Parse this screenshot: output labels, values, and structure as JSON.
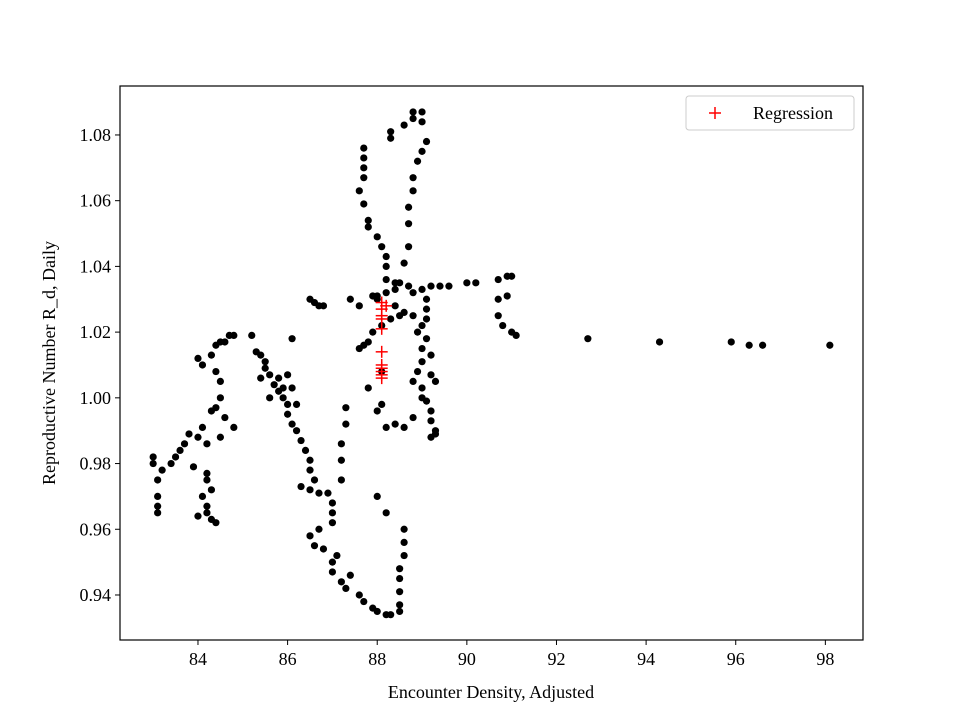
{
  "chart_data": {
    "type": "scatter",
    "x_label": "Encounter Density, Adjusted",
    "y_label": "Reproductive Number R_d, Daily",
    "xlim": [
      82.26,
      98.84
    ],
    "ylim": [
      0.9263,
      1.0949
    ],
    "xticks": [
      84,
      86,
      88,
      90,
      92,
      94,
      96,
      98
    ],
    "yticks": [
      0.94,
      0.96,
      0.98,
      {
        "value": 1,
        "label": "1.00"
      },
      1.02,
      1.04,
      1.06,
      1.08
    ],
    "legend": "upper right",
    "series": [
      {
        "color": "#000000",
        "marker": "dot",
        "x": [
          83.0,
          83.0,
          83.1,
          83.1,
          83.1,
          83.1,
          83.2,
          83.4,
          83.5,
          83.6,
          83.7,
          83.8,
          84.0,
          84.1,
          84.0,
          84.1,
          84.3,
          84.4,
          84.5,
          84.6,
          84.7,
          84.8,
          85.2,
          84.4,
          84.5,
          84.5,
          84.4,
          84.6,
          84.8,
          84.5,
          84.3,
          84.2,
          83.9,
          84.2,
          84.2,
          84.3,
          84.1,
          84.2,
          84.0,
          84.3,
          84.4,
          84.2,
          85.3,
          85.4,
          85.5,
          85.5,
          85.4,
          85.6,
          85.7,
          85.8,
          85.6,
          85.9,
          86.0,
          86.0,
          85.9,
          85.8,
          86.0,
          86.1,
          86.2,
          86.1,
          86.2,
          86.3,
          86.1,
          86.4,
          86.5,
          86.5,
          86.6,
          86.5,
          86.3,
          86.7,
          86.9,
          87.0,
          87.0,
          87.0,
          87.2,
          87.2,
          87.2,
          87.3,
          87.3,
          86.7,
          86.5,
          86.6,
          86.8,
          87.0,
          87.1,
          87.0,
          87.2,
          87.3,
          87.4,
          87.6,
          87.7,
          87.9,
          88.0,
          88.2,
          88.3,
          88.5,
          88.5,
          88.5,
          88.5,
          88.5,
          88.6,
          88.6,
          88.6,
          88.2,
          88.0,
          86.5,
          86.6,
          86.7,
          86.8,
          87.4,
          87.6,
          87.9,
          88.0,
          88.2,
          88.4,
          88.5,
          88.7,
          88.8,
          89.0,
          89.2,
          89.4,
          89.6,
          90.0,
          90.2,
          90.7,
          90.9,
          91.0,
          90.7,
          90.8,
          91.0,
          91.1,
          90.9,
          90.7,
          88.0,
          88.2,
          88.2,
          88.2,
          88.1,
          88.0,
          87.8,
          87.8,
          87.7,
          87.6,
          87.7,
          87.7,
          87.7,
          87.7,
          88.3,
          88.3,
          88.6,
          88.8,
          88.8,
          89.0,
          89.0,
          89.1,
          89.0,
          88.9,
          88.8,
          88.8,
          88.7,
          88.7,
          88.7,
          88.6,
          88.4,
          88.4,
          88.6,
          88.8,
          89.0,
          89.1,
          89.0,
          89.0,
          88.9,
          88.8,
          89.0,
          89.1,
          89.2,
          89.2,
          89.3,
          89.2,
          89.3,
          88.8,
          88.6,
          88.4,
          88.1,
          88.0,
          87.8,
          87.6,
          87.7,
          87.8,
          87.9,
          88.1,
          88.3,
          88.5,
          88.1,
          89.1,
          89.1,
          89.1,
          88.9,
          89.2,
          89.2,
          89.3,
          89.0,
          88.2,
          92.7,
          94.3,
          95.9,
          96.3,
          96.6,
          98.1
        ],
        "values": [
          0.982,
          0.98,
          0.975,
          0.97,
          0.967,
          0.965,
          0.978,
          0.98,
          0.982,
          0.984,
          0.986,
          0.989,
          0.988,
          0.991,
          1.012,
          1.01,
          1.013,
          1.016,
          1.017,
          1.017,
          1.019,
          1.019,
          1.019,
          1.008,
          1.005,
          1.0,
          0.997,
          0.994,
          0.991,
          0.988,
          0.996,
          0.986,
          0.979,
          0.977,
          0.975,
          0.972,
          0.97,
          0.967,
          0.964,
          0.963,
          0.962,
          0.965,
          1.014,
          1.013,
          1.011,
          1.009,
          1.006,
          1.007,
          1.004,
          1.002,
          1.0,
          1.0,
          0.998,
          0.995,
          1.003,
          1.006,
          1.007,
          1.003,
          0.998,
          0.992,
          0.99,
          0.987,
          1.018,
          0.984,
          0.981,
          0.978,
          0.975,
          0.972,
          0.973,
          0.971,
          0.971,
          0.968,
          0.965,
          0.962,
          0.975,
          0.981,
          0.986,
          0.992,
          0.997,
          0.96,
          0.958,
          0.955,
          0.954,
          0.95,
          0.952,
          0.947,
          0.944,
          0.942,
          0.946,
          0.94,
          0.938,
          0.936,
          0.935,
          0.934,
          0.934,
          0.935,
          0.937,
          0.941,
          0.945,
          0.948,
          0.952,
          0.956,
          0.96,
          0.965,
          0.97,
          1.03,
          1.029,
          1.028,
          1.028,
          1.03,
          1.028,
          1.031,
          1.03,
          1.032,
          1.033,
          1.035,
          1.034,
          1.032,
          1.033,
          1.034,
          1.034,
          1.034,
          1.035,
          1.035,
          1.036,
          1.037,
          1.037,
          1.025,
          1.022,
          1.02,
          1.019,
          1.031,
          1.03,
          1.031,
          1.036,
          1.04,
          1.043,
          1.046,
          1.049,
          1.052,
          1.054,
          1.059,
          1.063,
          1.067,
          1.07,
          1.073,
          1.076,
          1.079,
          1.081,
          1.083,
          1.085,
          1.087,
          1.087,
          1.084,
          1.078,
          1.075,
          1.072,
          1.067,
          1.063,
          1.058,
          1.053,
          1.046,
          1.041,
          1.035,
          1.028,
          1.026,
          1.025,
          1.022,
          1.018,
          1.015,
          1.011,
          1.008,
          1.005,
          1.003,
          0.999,
          0.996,
          0.993,
          0.99,
          0.988,
          0.989,
          0.994,
          0.991,
          0.992,
          0.998,
          0.996,
          1.003,
          1.015,
          1.016,
          1.017,
          1.02,
          1.022,
          1.024,
          1.025,
          1.008,
          1.03,
          1.027,
          1.024,
          1.02,
          1.013,
          1.007,
          1.005,
          1.0,
          0.991,
          1.018,
          1.017,
          1.017,
          1.016,
          1.016,
          1.016
        ]
      },
      {
        "name": "Regression",
        "color": "#ff0000",
        "marker": "plus",
        "x": [
          88.1,
          88.2,
          88.1,
          88.1,
          88.1,
          88.1,
          88.1,
          88.1,
          88.1,
          88.1,
          88.1,
          88.1
        ],
        "values": [
          1.029,
          1.028,
          1.027,
          1.025,
          1.024,
          1.021,
          1.014,
          1.01,
          1.009,
          1.008,
          1.007,
          1.006
        ]
      }
    ]
  }
}
